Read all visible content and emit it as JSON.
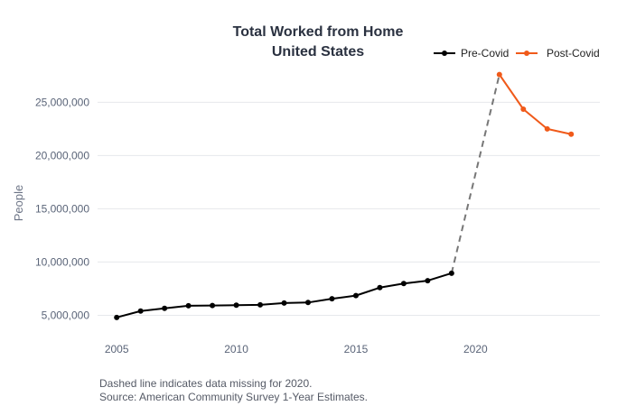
{
  "chart_data": {
    "type": "line",
    "title": [
      "Total Worked from Home",
      "United States"
    ],
    "ylabel": "People",
    "xlabel": "",
    "ylim": [
      3600000,
      28500000
    ],
    "xlim": [
      2004.2,
      2025.2
    ],
    "x_ticks": [
      2005,
      2010,
      2015,
      2020
    ],
    "x_tick_labels": [
      "2005",
      "2010",
      "2015",
      "2020"
    ],
    "y_ticks": [
      5000000,
      10000000,
      15000000,
      20000000,
      25000000
    ],
    "y_tick_labels": [
      "5,000,000",
      "10,000,000",
      "15,000,000",
      "20,000,000",
      "25,000,000"
    ],
    "grid": "horizontal",
    "legend_position": "top-right",
    "series": [
      {
        "name": "Pre-Covid",
        "color": "#000000",
        "x": [
          2005,
          2006,
          2007,
          2008,
          2009,
          2010,
          2011,
          2012,
          2013,
          2014,
          2015,
          2016,
          2017,
          2018,
          2019
        ],
        "y": [
          4800000,
          5400000,
          5650000,
          5900000,
          5920000,
          5950000,
          5980000,
          6150000,
          6200000,
          6550000,
          6850000,
          7600000,
          7980000,
          8250000,
          8950000
        ]
      },
      {
        "name": "Post-Covid",
        "color": "#f05a1a",
        "x": [
          2021,
          2022,
          2023,
          2024
        ],
        "y": [
          27600000,
          24350000,
          22500000,
          22000000
        ]
      }
    ],
    "gap_line": {
      "style": "dashed",
      "color": "#777777",
      "from": [
        2019,
        8950000
      ],
      "to": [
        2021,
        27600000
      ]
    }
  },
  "notes": [
    "Dashed line indicates data missing for 2020.",
    "Source: American Community Survey 1-Year Estimates."
  ]
}
